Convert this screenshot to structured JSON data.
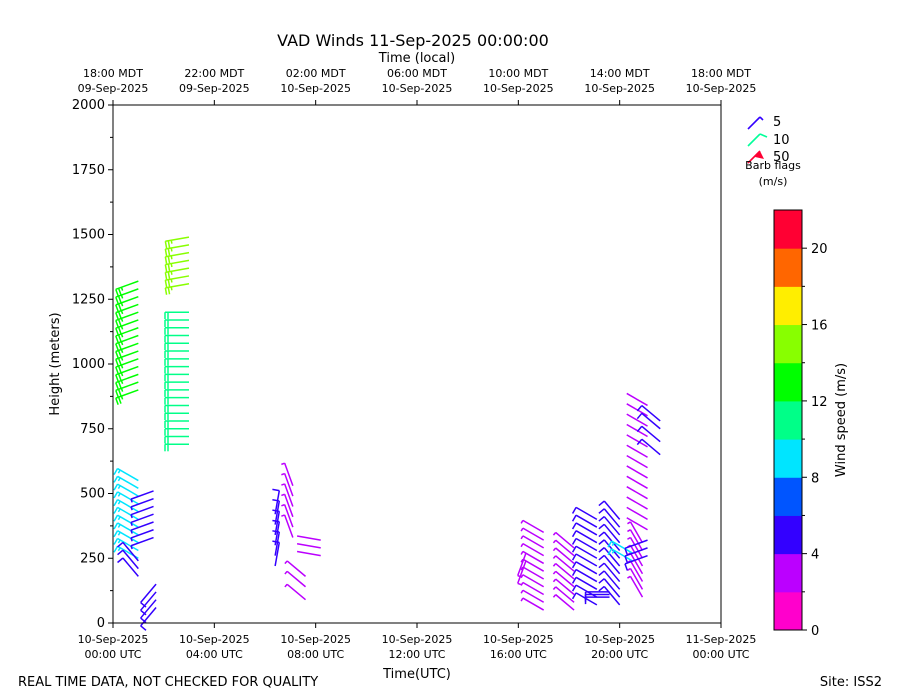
{
  "chart_data": {
    "type": "wind-barb",
    "title": "VAD Winds 11-Sep-2025 00:00:00",
    "top_axis_label": "Time (local)",
    "xlabel": "Time(UTC)",
    "ylabel": "Height (meters)",
    "ylim": [
      0,
      2000
    ],
    "xlim_hours": [
      0,
      24
    ],
    "y_ticks": [
      "0",
      "250",
      "500",
      "750",
      "1000",
      "1250",
      "1500",
      "1750",
      "2000"
    ],
    "x_ticks": [
      {
        "hour": 0,
        "line1": "10-Sep-2025",
        "line2": "00:00 UTC"
      },
      {
        "hour": 4,
        "line1": "10-Sep-2025",
        "line2": "04:00 UTC"
      },
      {
        "hour": 8,
        "line1": "10-Sep-2025",
        "line2": "08:00 UTC"
      },
      {
        "hour": 12,
        "line1": "10-Sep-2025",
        "line2": "12:00 UTC"
      },
      {
        "hour": 16,
        "line1": "10-Sep-2025",
        "line2": "16:00 UTC"
      },
      {
        "hour": 20,
        "line1": "10-Sep-2025",
        "line2": "20:00 UTC"
      },
      {
        "hour": 24,
        "line1": "11-Sep-2025",
        "line2": "00:00 UTC"
      }
    ],
    "top_ticks": [
      {
        "hour": 0,
        "line1": "18:00 MDT",
        "line2": "09-Sep-2025"
      },
      {
        "hour": 4,
        "line1": "22:00 MDT",
        "line2": "09-Sep-2025"
      },
      {
        "hour": 8,
        "line1": "02:00 MDT",
        "line2": "10-Sep-2025"
      },
      {
        "hour": 12,
        "line1": "06:00 MDT",
        "line2": "10-Sep-2025"
      },
      {
        "hour": 16,
        "line1": "10:00 MDT",
        "line2": "10-Sep-2025"
      },
      {
        "hour": 20,
        "line1": "14:00 MDT",
        "line2": "10-Sep-2025"
      },
      {
        "hour": 24,
        "line1": "18:00 MDT",
        "line2": "10-Sep-2025"
      }
    ],
    "legend": {
      "items": [
        {
          "label": "5",
          "color": "#3300ff"
        },
        {
          "label": "10",
          "color": "#00ff99"
        },
        {
          "label": "50",
          "color": "#ff0033"
        }
      ],
      "title_line1": "Barb flags",
      "title_line2": "(m/s)",
      "placement": "right"
    },
    "colorbar": {
      "label": "Wind speed (m/s)",
      "range": [
        0,
        22
      ],
      "ticks": [
        "0",
        "4",
        "8",
        "12",
        "16",
        "20"
      ],
      "colors": [
        "#ff00cc",
        "#bb00ff",
        "#3300ff",
        "#0055ff",
        "#00e5ff",
        "#00ff88",
        "#00ff00",
        "#88ff00",
        "#ffee00",
        "#ff6600",
        "#ff0033"
      ]
    },
    "profiles": [
      {
        "hour": 1.0,
        "heights": [
          900,
          930,
          960,
          990,
          1020,
          1050,
          1080,
          1110,
          1140,
          1170,
          1200,
          1230,
          1260,
          1290,
          1320
        ],
        "speed": 13,
        "dir": 250
      },
      {
        "hour": 1.0,
        "heights": [
          250,
          280,
          310,
          340,
          370,
          400,
          430,
          460,
          490,
          520,
          550
        ],
        "speed": 9,
        "dir": 300
      },
      {
        "hour": 1.0,
        "heights": [
          180,
          210,
          240
        ],
        "speed": 5,
        "dir": 320
      },
      {
        "hour": 1.6,
        "heights": [
          330,
          360,
          390,
          420,
          450,
          480,
          510
        ],
        "speed": 4,
        "dir": 250
      },
      {
        "hour": 1.7,
        "heights": [
          60,
          90,
          120,
          150
        ],
        "speed": 5,
        "dir": 220
      },
      {
        "hour": 3.0,
        "heights": [
          690,
          720,
          750,
          780,
          810,
          840,
          870,
          900,
          930,
          960,
          990,
          1020,
          1050,
          1080,
          1110,
          1140,
          1170,
          1200
        ],
        "speed": 11,
        "dir": 270
      },
      {
        "hour": 3.0,
        "heights": [
          1310,
          1340,
          1370,
          1400,
          1430,
          1460,
          1490
        ],
        "speed": 14,
        "dir": 260
      },
      {
        "hour": 6.4,
        "heights": [
          220,
          260,
          300,
          340,
          380,
          420
        ],
        "speed": 5,
        "dir": 10
      },
      {
        "hour": 7.1,
        "heights": [
          330,
          370,
          410,
          450,
          490,
          530
        ],
        "speed": 3,
        "dir": 340
      },
      {
        "hour": 7.6,
        "heights": [
          90,
          140,
          180
        ],
        "speed": 3,
        "dir": 310
      },
      {
        "hour": 8.2,
        "heights": [
          260,
          290,
          320
        ],
        "speed": 2,
        "dir": 280
      },
      {
        "hour": 16.3,
        "heights": [
          240,
          270
        ],
        "speed": 3,
        "dir": 200
      },
      {
        "hour": 17.0,
        "heights": [
          50,
          80,
          110,
          140,
          170,
          200,
          230,
          260,
          290,
          320,
          350
        ],
        "speed": 3,
        "dir": 300
      },
      {
        "hour": 18.2,
        "heights": [
          50,
          80,
          110,
          140,
          170,
          200,
          230,
          260,
          290
        ],
        "speed": 3,
        "dir": 310
      },
      {
        "hour": 19.1,
        "heights": [
          70,
          100,
          130,
          160,
          190,
          220,
          250,
          280,
          310,
          340,
          370,
          400
        ],
        "speed": 5,
        "dir": 300
      },
      {
        "hour": 19.6,
        "heights": [
          100,
          110,
          120
        ],
        "speed": 5,
        "dir": 270
      },
      {
        "hour": 20.0,
        "heights": [
          70,
          100,
          130,
          160,
          190,
          220,
          250,
          280,
          310,
          340,
          370,
          400
        ],
        "speed": 5,
        "dir": 320
      },
      {
        "hour": 20.5,
        "heights": [
          240,
          270
        ],
        "speed": 9,
        "dir": 300
      },
      {
        "hour": 20.9,
        "heights": [
          100,
          130,
          160,
          190,
          220,
          250,
          280,
          310
        ],
        "speed": 3,
        "dir": 330
      },
      {
        "hour": 21.1,
        "heights": [
          260,
          290,
          320
        ],
        "speed": 5,
        "dir": 250
      },
      {
        "hour": 21.1,
        "heights": [
          360,
          400,
          440,
          480,
          520,
          560,
          600,
          640,
          680,
          720,
          760,
          800,
          840
        ],
        "speed": 2,
        "dir": 300
      },
      {
        "hour": 21.6,
        "heights": [
          650,
          700,
          750,
          780
        ],
        "speed": 5,
        "dir": 310
      }
    ],
    "footer_left": "REAL TIME DATA, NOT CHECKED FOR QUALITY",
    "footer_right": "Site: ISS2"
  }
}
